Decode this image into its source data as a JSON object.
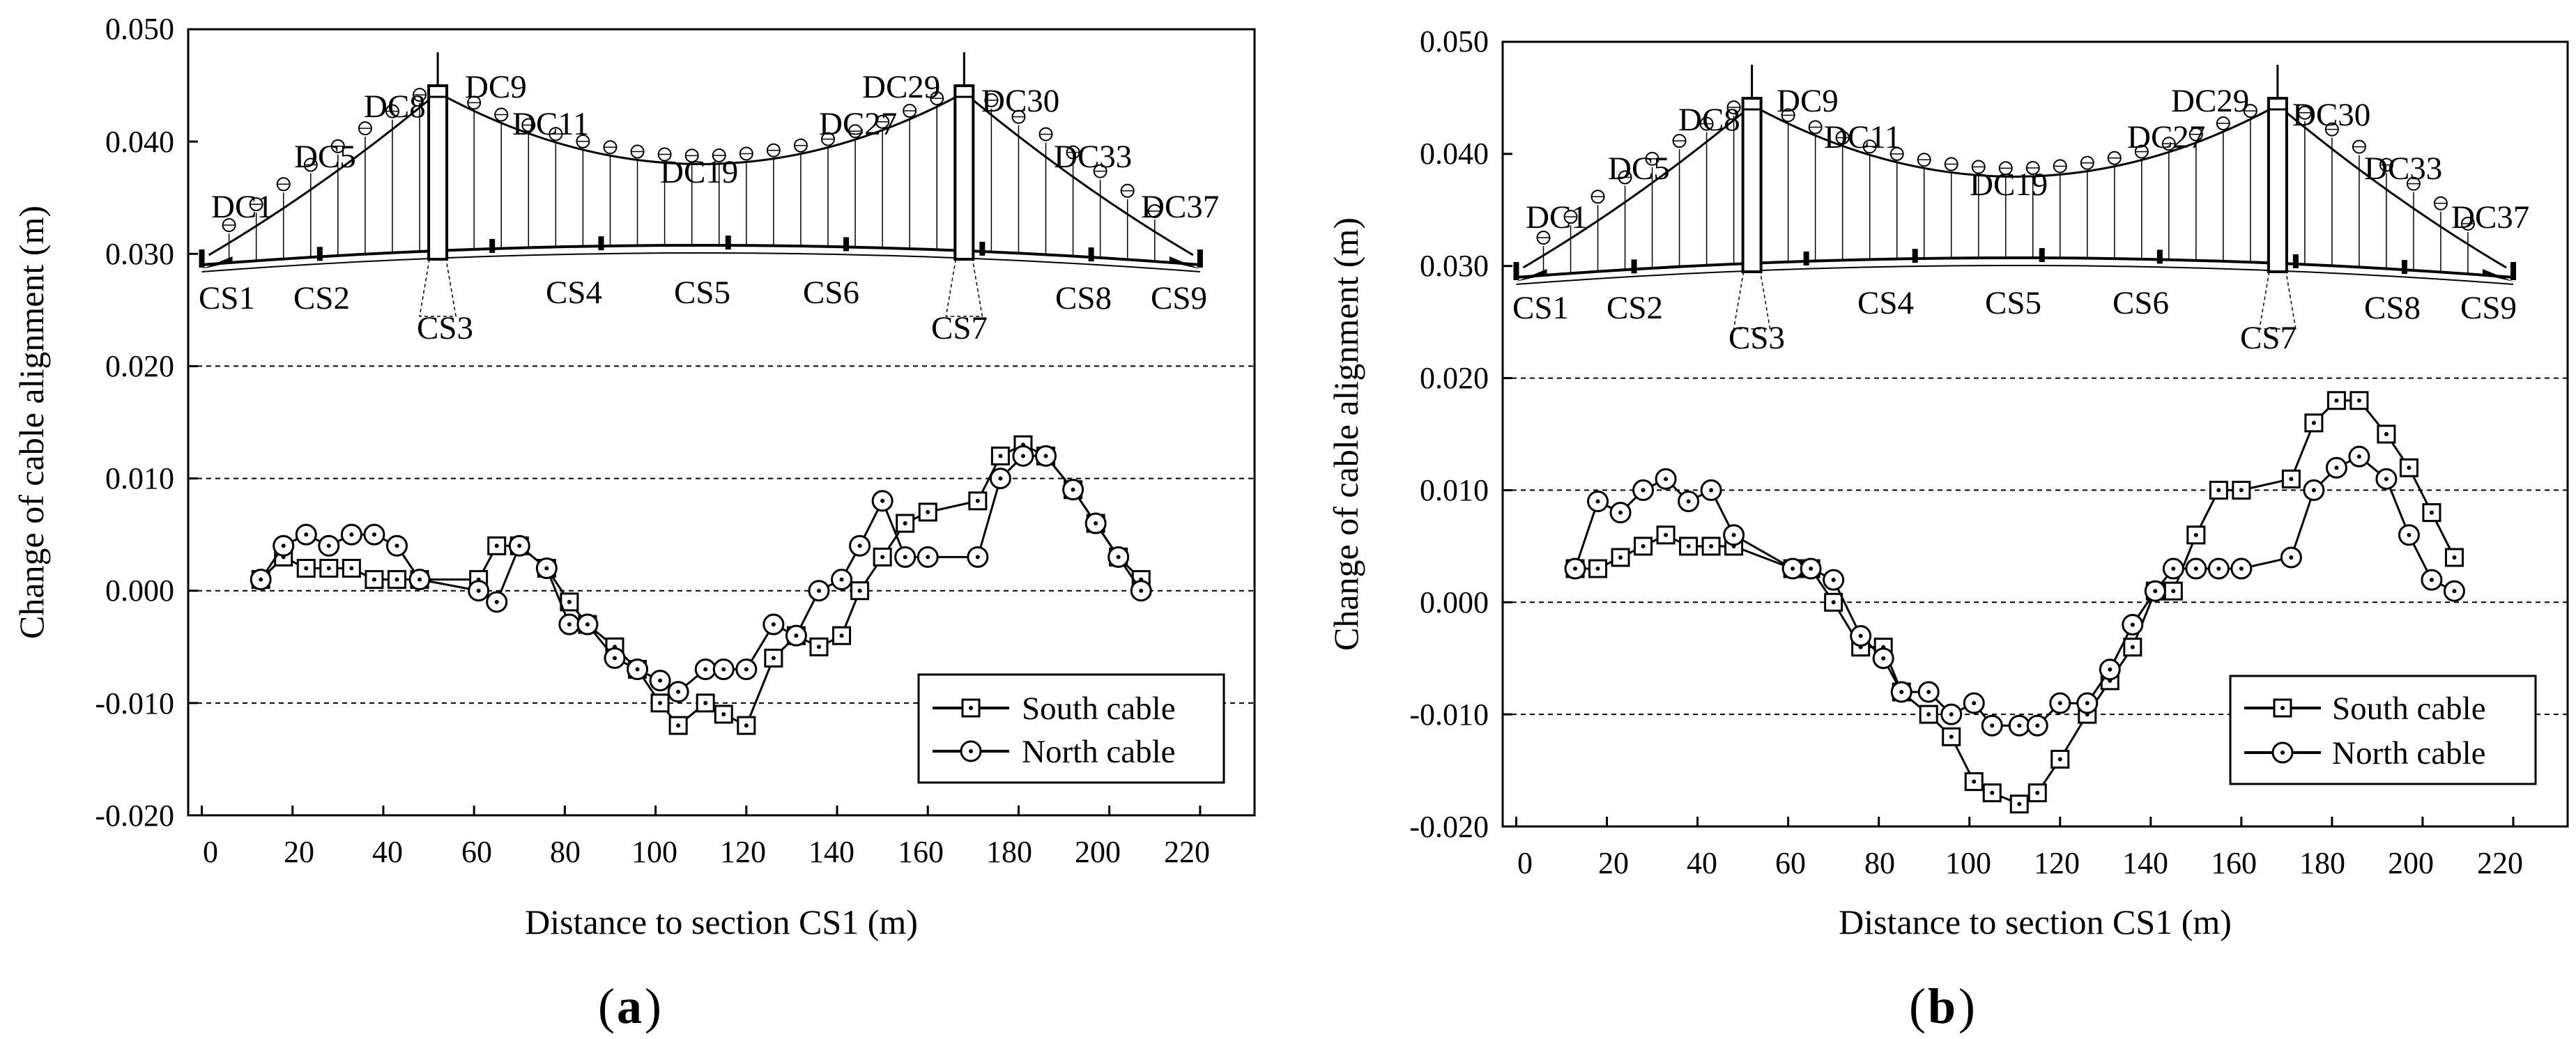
{
  "figure": {
    "panels": [
      "a",
      "b"
    ],
    "x_ticks": [
      "0",
      "20",
      "40",
      "60",
      "80",
      "100",
      "120",
      "140",
      "160",
      "180",
      "200",
      "220"
    ],
    "y_ticks": [
      "0.050",
      "0.040",
      "0.030",
      "0.020",
      "0.010",
      "0.000",
      "-0.010",
      "-0.020"
    ],
    "legend": {
      "south": "South cable",
      "north": "North cable"
    }
  },
  "chart_data": [
    {
      "type": "line",
      "panel_label": "a",
      "xlabel": "Distance to section CS1 (m)",
      "ylabel": "Change of cable alignment (m)",
      "xlim": [
        -3,
        232
      ],
      "ylim": [
        -0.02,
        0.05
      ],
      "grid": "dashed horizontal at 0.020, 0.010, 0.000, -0.010",
      "legend_position": "bottom-right",
      "structure_labels": {
        "droppers": [
          "DC1",
          "DC5",
          "DC8",
          "DC9",
          "DC11",
          "DC19",
          "DC27",
          "DC29",
          "DC30",
          "DC33",
          "DC37"
        ],
        "sections": [
          "CS1",
          "CS2",
          "CS3",
          "CS4",
          "CS5",
          "CS6",
          "CS7",
          "CS8",
          "CS9"
        ]
      },
      "series": [
        {
          "name": "South cable",
          "marker": "square",
          "x": [
            13,
            18,
            23,
            28,
            33,
            38,
            43,
            48,
            61,
            65,
            70,
            76,
            81,
            85,
            91,
            96,
            101,
            105,
            111,
            115,
            120,
            126,
            131,
            136,
            141,
            145,
            150,
            155,
            160,
            171,
            176,
            181,
            186,
            192,
            197,
            202,
            207
          ],
          "y": [
            0.001,
            0.003,
            0.002,
            0.002,
            0.002,
            0.001,
            0.001,
            0.001,
            0.001,
            0.004,
            0.004,
            0.002,
            -0.001,
            -0.003,
            -0.005,
            -0.007,
            -0.01,
            -0.012,
            -0.01,
            -0.011,
            -0.012,
            -0.006,
            -0.004,
            -0.005,
            -0.004,
            0.0,
            0.003,
            0.006,
            0.007,
            0.008,
            0.012,
            0.013,
            0.012,
            0.009,
            0.006,
            0.003,
            0.001
          ]
        },
        {
          "name": "North cable",
          "marker": "circle",
          "x": [
            13,
            18,
            23,
            28,
            33,
            38,
            43,
            48,
            61,
            65,
            70,
            76,
            81,
            85,
            91,
            96,
            101,
            105,
            111,
            115,
            120,
            126,
            131,
            136,
            141,
            145,
            150,
            155,
            160,
            171,
            176,
            181,
            186,
            192,
            197,
            202,
            207
          ],
          "y": [
            0.001,
            0.004,
            0.005,
            0.004,
            0.005,
            0.005,
            0.004,
            0.001,
            0.0,
            -0.001,
            0.004,
            0.002,
            -0.003,
            -0.003,
            -0.006,
            -0.007,
            -0.008,
            -0.009,
            -0.007,
            -0.007,
            -0.007,
            -0.003,
            -0.004,
            0.0,
            0.001,
            0.004,
            0.008,
            0.003,
            0.003,
            0.003,
            0.01,
            0.012,
            0.012,
            0.009,
            0.006,
            0.003,
            0.0
          ]
        }
      ]
    },
    {
      "type": "line",
      "panel_label": "b",
      "xlabel": "Distance to section CS1 (m)",
      "ylabel": "Change of cable alignment (m)",
      "xlim": [
        -3,
        232
      ],
      "ylim": [
        -0.02,
        0.05
      ],
      "grid": "dashed horizontal at 0.020, 0.010, 0.000, -0.010",
      "legend_position": "bottom-right",
      "structure_labels": {
        "droppers": [
          "DC1",
          "DC5",
          "DC8",
          "DC9",
          "DC11",
          "DC19",
          "DC27",
          "DC29",
          "DC30",
          "DC33",
          "DC37"
        ],
        "sections": [
          "CS1",
          "CS2",
          "CS3",
          "CS4",
          "CS5",
          "CS6",
          "CS7",
          "CS8",
          "CS9"
        ]
      },
      "series": [
        {
          "name": "South cable",
          "marker": "square",
          "x": [
            13,
            18,
            23,
            28,
            33,
            38,
            43,
            48,
            61,
            65,
            70,
            76,
            81,
            85,
            91,
            96,
            101,
            105,
            111,
            115,
            120,
            126,
            131,
            136,
            141,
            145,
            150,
            155,
            160,
            171,
            176,
            181,
            186,
            192,
            197,
            202,
            207
          ],
          "y": [
            0.003,
            0.003,
            0.004,
            0.005,
            0.006,
            0.005,
            0.005,
            0.005,
            0.003,
            0.003,
            0.0,
            -0.004,
            -0.004,
            -0.008,
            -0.01,
            -0.012,
            -0.016,
            -0.017,
            -0.018,
            -0.017,
            -0.014,
            -0.01,
            -0.007,
            -0.004,
            0.001,
            0.001,
            0.006,
            0.01,
            0.01,
            0.011,
            0.016,
            0.018,
            0.018,
            0.015,
            0.012,
            0.008,
            0.004
          ]
        },
        {
          "name": "North cable",
          "marker": "circle",
          "x": [
            13,
            18,
            23,
            28,
            33,
            38,
            43,
            48,
            61,
            65,
            70,
            76,
            81,
            85,
            91,
            96,
            101,
            105,
            111,
            115,
            120,
            126,
            131,
            136,
            141,
            145,
            150,
            155,
            160,
            171,
            176,
            181,
            186,
            192,
            197,
            202,
            207
          ],
          "y": [
            0.003,
            0.009,
            0.008,
            0.01,
            0.011,
            0.009,
            0.01,
            0.006,
            0.003,
            0.003,
            0.002,
            -0.003,
            -0.005,
            -0.008,
            -0.008,
            -0.01,
            -0.009,
            -0.011,
            -0.011,
            -0.011,
            -0.009,
            -0.009,
            -0.006,
            -0.002,
            0.001,
            0.003,
            0.003,
            0.003,
            0.003,
            0.004,
            0.01,
            0.012,
            0.013,
            0.011,
            0.006,
            0.002,
            0.001
          ]
        }
      ]
    }
  ]
}
